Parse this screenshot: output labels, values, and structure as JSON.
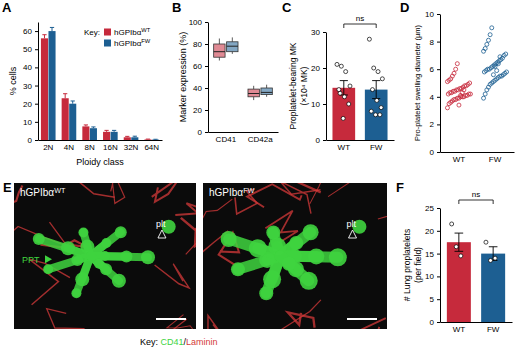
{
  "chart_data": [
    {
      "type": "bar",
      "title": "A",
      "categories": [
        "2N",
        "4N",
        "8N",
        "16N",
        "32N",
        "64N"
      ],
      "series": [
        {
          "name": "hGPIbαWT",
          "color": "#c62a3c",
          "values": [
            56,
            23,
            7.5,
            4.5,
            1.5,
            0.3
          ],
          "errors": [
            2,
            2.5,
            0.8,
            0.8,
            0.5,
            0.2
          ]
        },
        {
          "name": "hGPIbαFW",
          "color": "#1d5f92",
          "values": [
            60,
            20,
            6.5,
            4.5,
            1.5,
            0.2
          ],
          "errors": [
            2,
            1.5,
            0.7,
            0.8,
            0.6,
            0.2
          ]
        }
      ],
      "xlabel": "Ploidy class",
      "ylabel": "% cells",
      "ylim": [
        0,
        65
      ],
      "yticks": [
        0,
        10,
        20,
        30,
        40,
        50,
        60
      ],
      "legend": "top-right",
      "legend_title": "Key:"
    },
    {
      "type": "box",
      "title": "B",
      "categories": [
        "CD41",
        "CD42a"
      ],
      "series": [
        {
          "color": "#c62a3c",
          "whisker_low": [
            65,
            29
          ],
          "q1": [
            68,
            32
          ],
          "median": [
            73,
            35
          ],
          "q3": [
            80,
            39
          ],
          "whisker_high": [
            85,
            42
          ]
        },
        {
          "color": "#1d5f92",
          "whisker_low": [
            71,
            32
          ],
          "q1": [
            73,
            34
          ],
          "median": [
            78,
            36
          ],
          "q3": [
            82,
            40
          ],
          "whisker_high": [
            86,
            43
          ]
        }
      ],
      "ylabel": "Marker expression (%)",
      "ylim": [
        0,
        100
      ],
      "yticks": [
        0,
        20,
        40,
        60,
        80,
        100
      ]
    },
    {
      "type": "bar",
      "title": "C",
      "categories": [
        "WT",
        "FW"
      ],
      "values": [
        14.5,
        14
      ],
      "errors": [
        2,
        2.5
      ],
      "points": [
        [
          21,
          20.5,
          19,
          15,
          13,
          12,
          10,
          14,
          6
        ],
        [
          28,
          20,
          19,
          17,
          14,
          11,
          9,
          8,
          7,
          7
        ]
      ],
      "colors": [
        "#c62a3c",
        "#1d5f92"
      ],
      "ylabel": [
        "Proplatelet-bearing MK",
        "(×10⁴ MK)"
      ],
      "ylim": [
        0,
        30
      ],
      "yticks": [
        0,
        10,
        20,
        30
      ],
      "annotations": [
        "ns"
      ]
    },
    {
      "type": "scatter",
      "title": "D",
      "categories": [
        "WT",
        "FW"
      ],
      "points": [
        [
          3.2,
          3.5,
          3.6,
          3.7,
          3.8,
          3.8,
          3.9,
          3.9,
          4.0,
          4.0,
          4.0,
          4.1,
          4.1,
          4.2,
          4.2,
          4.2,
          4.3,
          4.3,
          4.4,
          4.4,
          4.5,
          4.5,
          4.6,
          4.6,
          4.7,
          4.8,
          4.8,
          4.9,
          5.0,
          5.1,
          5.2,
          5.3,
          5.5,
          5.7,
          6.0,
          6.4,
          3.4,
          4.1,
          4.3,
          4.5
        ],
        [
          3.9,
          4.2,
          4.5,
          4.7,
          4.9,
          5.0,
          5.1,
          5.2,
          5.3,
          5.4,
          5.5,
          5.5,
          5.6,
          5.7,
          5.8,
          5.8,
          5.9,
          6.0,
          6.0,
          6.1,
          6.2,
          6.3,
          6.4,
          6.5,
          6.6,
          6.7,
          6.8,
          7.0,
          7.1,
          7.3,
          7.5,
          7.8,
          8.1,
          8.5,
          9.0,
          5.6,
          6.2,
          5.9,
          6.4,
          6.9
        ]
      ],
      "colors": [
        "#c62a3c",
        "#1d5f92"
      ],
      "marker": "open-circle",
      "ylabel": "Pro-platelet swelling diameter (µm)",
      "ylim": [
        0,
        10
      ],
      "yticks": [
        0,
        2,
        4,
        6,
        8,
        10
      ]
    },
    {
      "type": "bar",
      "title": "F",
      "categories": [
        "WT",
        "FW"
      ],
      "values": [
        17.5,
        15
      ],
      "errors": [
        2,
        1.5
      ],
      "points": [
        [
          21.5,
          16.5,
          14.5
        ],
        [
          17.5,
          13.5,
          14
        ]
      ],
      "colors": [
        "#c62a3c",
        "#1d5f92"
      ],
      "ylabel": [
        "# Lung proplatelets",
        "(per field)"
      ],
      "ylim": [
        0,
        25
      ],
      "yticks": [
        0,
        5,
        10,
        15,
        20,
        25
      ],
      "annotations": [
        "ns"
      ]
    }
  ],
  "image_panel": {
    "title": "E",
    "images": [
      {
        "label": "hGPIbαWT",
        "annotations": [
          "PPT",
          "plt"
        ]
      },
      {
        "label": "hGPIbαFW",
        "annotations": [
          "plt"
        ]
      }
    ],
    "legend_title": "Key:",
    "separator": "/",
    "channels": [
      {
        "name": "CD41",
        "color": "#3fd43f"
      },
      {
        "name": "Laminin",
        "color": "#d43a3a"
      }
    ]
  }
}
